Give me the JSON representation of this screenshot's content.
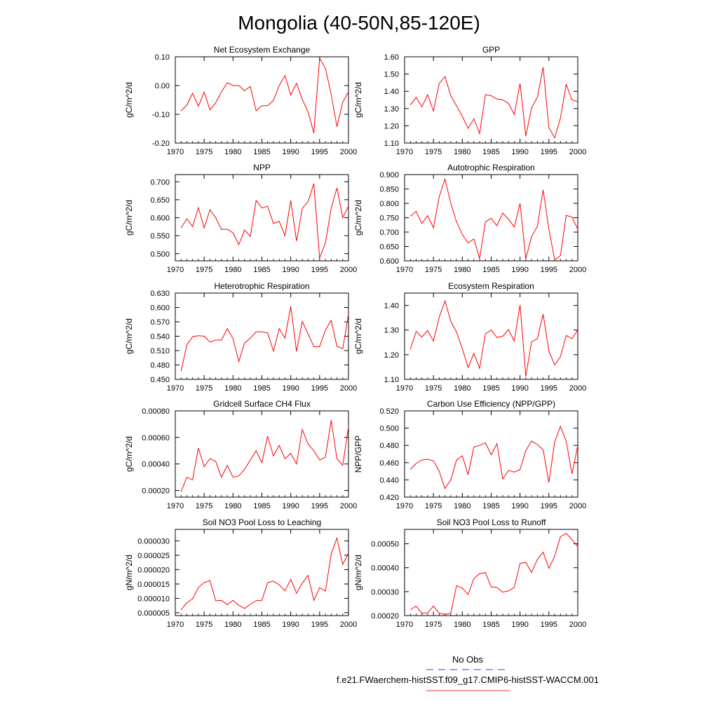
{
  "figure": {
    "title": "Mongolia (40-50N,85-120E)",
    "legend": [
      {
        "label": "No Obs",
        "color": "#3b3bd6",
        "dash": "dashed"
      },
      {
        "label": "f.e21.FWaerchem-histSST.f09_g17.CMIP6-histSST-WACCM.001",
        "color": "#e03030",
        "dash": "solid"
      }
    ]
  },
  "chart_data": [
    {
      "type": "line",
      "title": "Net Ecosystem Exchange",
      "ylabel": "gC/m^2/d",
      "xlabel": "",
      "xlim": [
        1970,
        2000
      ],
      "ylim": [
        -0.2,
        0.1
      ],
      "xticks": [
        "1970",
        "1975",
        "1980",
        "1985",
        "1990",
        "1995",
        "2000"
      ],
      "yticks": [
        "-0.20",
        "-0.10",
        "0.00",
        "0.10"
      ],
      "x": [
        1971,
        1972,
        1973,
        1974,
        1975,
        1976,
        1977,
        1978,
        1979,
        1980,
        1981,
        1982,
        1983,
        1984,
        1985,
        1986,
        1987,
        1988,
        1989,
        1990,
        1991,
        1992,
        1993,
        1994,
        1995,
        1996,
        1997,
        1998,
        1999,
        2000
      ],
      "series": [
        {
          "color": "#ff0000",
          "values": [
            -0.088,
            -0.068,
            -0.027,
            -0.072,
            -0.023,
            -0.085,
            -0.06,
            -0.022,
            0.01,
            0.0,
            0.0,
            -0.018,
            -0.003,
            -0.088,
            -0.07,
            -0.07,
            -0.052,
            0.0,
            0.035,
            -0.033,
            0.008,
            -0.048,
            -0.092,
            -0.165,
            0.095,
            0.06,
            -0.03,
            -0.143,
            -0.058,
            -0.022
          ]
        }
      ]
    },
    {
      "type": "line",
      "title": "GPP",
      "ylabel": "gC/m^2/d",
      "xlabel": "",
      "xlim": [
        1970,
        2000
      ],
      "ylim": [
        1.1,
        1.6
      ],
      "xticks": [
        "1970",
        "1975",
        "1980",
        "1985",
        "1990",
        "1995",
        "2000"
      ],
      "yticks": [
        "1.10",
        "1.20",
        "1.30",
        "1.40",
        "1.50",
        "1.60"
      ],
      "x": [
        1971,
        1972,
        1973,
        1974,
        1975,
        1976,
        1977,
        1978,
        1979,
        1980,
        1981,
        1982,
        1983,
        1984,
        1985,
        1986,
        1987,
        1988,
        1989,
        1990,
        1991,
        1992,
        1993,
        1994,
        1995,
        1996,
        1997,
        1998,
        1999,
        2000
      ],
      "series": [
        {
          "color": "#ff0000",
          "values": [
            1.32,
            1.365,
            1.31,
            1.38,
            1.285,
            1.445,
            1.485,
            1.375,
            1.315,
            1.255,
            1.185,
            1.24,
            1.155,
            1.38,
            1.375,
            1.355,
            1.35,
            1.33,
            1.265,
            1.445,
            1.14,
            1.305,
            1.365,
            1.54,
            1.19,
            1.13,
            1.245,
            1.44,
            1.35,
            1.34
          ]
        }
      ]
    },
    {
      "type": "line",
      "title": "NPP",
      "ylabel": "gC/m^2/d",
      "xlabel": "",
      "xlim": [
        1970,
        2000
      ],
      "ylim": [
        0.48,
        0.72
      ],
      "xticks": [
        "1970",
        "1975",
        "1980",
        "1985",
        "1990",
        "1995",
        "2000"
      ],
      "yticks": [
        "0.500",
        "0.550",
        "0.600",
        "0.650",
        "0.700"
      ],
      "x": [
        1971,
        1972,
        1973,
        1974,
        1975,
        1976,
        1977,
        1978,
        1979,
        1980,
        1981,
        1982,
        1983,
        1984,
        1985,
        1986,
        1987,
        1988,
        1989,
        1990,
        1991,
        1992,
        1993,
        1994,
        1995,
        1996,
        1997,
        1998,
        1999,
        2000
      ],
      "series": [
        {
          "color": "#ff0000",
          "values": [
            0.572,
            0.597,
            0.575,
            0.628,
            0.572,
            0.622,
            0.6,
            0.567,
            0.568,
            0.558,
            0.525,
            0.566,
            0.548,
            0.648,
            0.627,
            0.632,
            0.584,
            0.59,
            0.55,
            0.648,
            0.535,
            0.626,
            0.645,
            0.695,
            0.488,
            0.53,
            0.626,
            0.683,
            0.6,
            0.632
          ]
        }
      ]
    },
    {
      "type": "line",
      "title": "Autotrophic Respiration",
      "ylabel": "gC/m^2/d",
      "xlabel": "",
      "xlim": [
        1970,
        2000
      ],
      "ylim": [
        0.6,
        0.9
      ],
      "xticks": [
        "1970",
        "1975",
        "1980",
        "1985",
        "1990",
        "1995",
        "2000"
      ],
      "yticks": [
        "0.600",
        "0.650",
        "0.700",
        "0.750",
        "0.800",
        "0.850",
        "0.900"
      ],
      "x": [
        1971,
        1972,
        1973,
        1974,
        1975,
        1976,
        1977,
        1978,
        1979,
        1980,
        1981,
        1982,
        1983,
        1984,
        1985,
        1986,
        1987,
        1988,
        1989,
        1990,
        1991,
        1992,
        1993,
        1994,
        1995,
        1996,
        1997,
        1998,
        1999,
        2000
      ],
      "series": [
        {
          "color": "#ff0000",
          "values": [
            0.755,
            0.772,
            0.73,
            0.757,
            0.715,
            0.823,
            0.885,
            0.8,
            0.735,
            0.692,
            0.662,
            0.676,
            0.608,
            0.735,
            0.748,
            0.722,
            0.766,
            0.745,
            0.718,
            0.8,
            0.607,
            0.684,
            0.72,
            0.847,
            0.71,
            0.603,
            0.618,
            0.758,
            0.752,
            0.71
          ]
        }
      ]
    },
    {
      "type": "line",
      "title": "Heterotrophic Respiration",
      "ylabel": "gC/m^2/d",
      "xlabel": "",
      "xlim": [
        1970,
        2000
      ],
      "ylim": [
        0.45,
        0.63
      ],
      "xticks": [
        "1970",
        "1975",
        "1980",
        "1985",
        "1990",
        "1995",
        "2000"
      ],
      "yticks": [
        "0.450",
        "0.480",
        "0.510",
        "0.540",
        "0.570",
        "0.600",
        "0.630"
      ],
      "x": [
        1971,
        1972,
        1973,
        1974,
        1975,
        1976,
        1977,
        1978,
        1979,
        1980,
        1981,
        1982,
        1983,
        1984,
        1985,
        1986,
        1987,
        1988,
        1989,
        1990,
        1991,
        1992,
        1993,
        1994,
        1995,
        1996,
        1997,
        1998,
        1999,
        2000
      ],
      "series": [
        {
          "color": "#ff0000",
          "values": [
            0.467,
            0.522,
            0.539,
            0.541,
            0.54,
            0.528,
            0.532,
            0.532,
            0.556,
            0.535,
            0.487,
            0.526,
            0.536,
            0.549,
            0.549,
            0.547,
            0.509,
            0.556,
            0.536,
            0.602,
            0.508,
            0.571,
            0.545,
            0.518,
            0.518,
            0.553,
            0.573,
            0.519,
            0.514,
            0.586
          ]
        }
      ]
    },
    {
      "type": "line",
      "title": "Ecosystem Respiration",
      "ylabel": "gC/m^2/d",
      "xlabel": "",
      "xlim": [
        1970,
        2000
      ],
      "ylim": [
        1.1,
        1.45
      ],
      "xticks": [
        "1970",
        "1975",
        "1980",
        "1985",
        "1990",
        "1995",
        "2000"
      ],
      "yticks": [
        "1.10",
        "1.20",
        "1.30",
        "1.40"
      ],
      "x": [
        1971,
        1972,
        1973,
        1974,
        1975,
        1976,
        1977,
        1978,
        1979,
        1980,
        1981,
        1982,
        1983,
        1984,
        1985,
        1986,
        1987,
        1988,
        1989,
        1990,
        1991,
        1992,
        1993,
        1994,
        1995,
        1996,
        1997,
        1998,
        1999,
        2000
      ],
      "series": [
        {
          "color": "#ff0000",
          "values": [
            1.222,
            1.295,
            1.272,
            1.298,
            1.255,
            1.352,
            1.418,
            1.335,
            1.292,
            1.225,
            1.148,
            1.205,
            1.145,
            1.285,
            1.3,
            1.27,
            1.275,
            1.302,
            1.255,
            1.402,
            1.112,
            1.252,
            1.265,
            1.365,
            1.215,
            1.158,
            1.192,
            1.278,
            1.265,
            1.3
          ]
        }
      ]
    },
    {
      "type": "line",
      "title": "Gridcell Surface CH4 Flux",
      "ylabel": "gC/m^2/d",
      "xlabel": "",
      "xlim": [
        1970,
        2000
      ],
      "ylim": [
        0.00015,
        0.0008
      ],
      "xticks": [
        "1970",
        "1975",
        "1980",
        "1985",
        "1990",
        "1995",
        "2000"
      ],
      "yticks": [
        "0.00020",
        "0.00040",
        "0.00060",
        "0.00080"
      ],
      "x": [
        1971,
        1972,
        1973,
        1974,
        1975,
        1976,
        1977,
        1978,
        1979,
        1980,
        1981,
        1982,
        1983,
        1984,
        1985,
        1986,
        1987,
        1988,
        1989,
        1990,
        1991,
        1992,
        1993,
        1994,
        1995,
        1996,
        1997,
        1998,
        1999,
        2000
      ],
      "series": [
        {
          "color": "#ff0000",
          "values": [
            0.00019,
            0.0003,
            0.00028,
            0.00052,
            0.00038,
            0.00044,
            0.00042,
            0.0003,
            0.00039,
            0.0003,
            0.00031,
            0.00036,
            0.00043,
            0.0005,
            0.00041,
            0.00061,
            0.00046,
            0.00054,
            0.00044,
            0.00048,
            0.0004,
            0.00066,
            0.00055,
            0.0005,
            0.00043,
            0.00045,
            0.00073,
            0.00044,
            0.00039,
            0.00068
          ]
        }
      ]
    },
    {
      "type": "line",
      "title": "Carbon Use Efficiency (NPP/GPP)",
      "ylabel": "NPP/GPP",
      "xlabel": "",
      "xlim": [
        1970,
        2000
      ],
      "ylim": [
        0.42,
        0.52
      ],
      "xticks": [
        "1970",
        "1975",
        "1980",
        "1985",
        "1990",
        "1995",
        "2000"
      ],
      "yticks": [
        "0.420",
        "0.440",
        "0.460",
        "0.480",
        "0.500",
        "0.520"
      ],
      "x": [
        1971,
        1972,
        1973,
        1974,
        1975,
        1976,
        1977,
        1978,
        1979,
        1980,
        1981,
        1982,
        1983,
        1984,
        1985,
        1986,
        1987,
        1988,
        1989,
        1990,
        1991,
        1992,
        1993,
        1994,
        1995,
        1996,
        1997,
        1998,
        1999,
        2000
      ],
      "series": [
        {
          "color": "#ff0000",
          "values": [
            0.452,
            0.459,
            0.463,
            0.464,
            0.462,
            0.45,
            0.43,
            0.44,
            0.463,
            0.468,
            0.446,
            0.478,
            0.48,
            0.483,
            0.469,
            0.482,
            0.441,
            0.451,
            0.449,
            0.452,
            0.474,
            0.485,
            0.481,
            0.475,
            0.437,
            0.484,
            0.502,
            0.485,
            0.447,
            0.48
          ]
        }
      ]
    },
    {
      "type": "line",
      "title": "Soil NO3 Pool Loss to Leaching",
      "ylabel": "gN/m^2/d",
      "xlabel": "",
      "xlim": [
        1970,
        2000
      ],
      "ylim": [
        4e-06,
        3.4e-05
      ],
      "xticks": [
        "1970",
        "1975",
        "1980",
        "1985",
        "1990",
        "1995",
        "2000"
      ],
      "yticks": [
        "0.000005",
        "0.000010",
        "0.000015",
        "0.000020",
        "0.000025",
        "0.000030"
      ],
      "x": [
        1971,
        1972,
        1973,
        1974,
        1975,
        1976,
        1977,
        1978,
        1979,
        1980,
        1981,
        1982,
        1983,
        1984,
        1985,
        1986,
        1987,
        1988,
        1989,
        1990,
        1991,
        1992,
        1993,
        1994,
        1995,
        1996,
        1997,
        1998,
        1999,
        2000
      ],
      "series": [
        {
          "color": "#ff0000",
          "values": [
            6e-06,
            8.5e-06,
            9.8e-06,
            1.38e-05,
            1.55e-05,
            1.62e-05,
            9.2e-06,
            9.3e-06,
            7.8e-06,
            9.3e-06,
            7.6e-06,
            6.5e-06,
            7.9e-06,
            9.2e-06,
            9.3e-06,
            1.55e-05,
            1.6e-05,
            1.47e-05,
            1.26e-05,
            1.66e-05,
            1.18e-05,
            1.53e-05,
            1.8e-05,
            9.3e-06,
            1.37e-05,
            1.25e-05,
            2.54e-05,
            3.1e-05,
            2.18e-05,
            2.58e-05
          ]
        }
      ]
    },
    {
      "type": "line",
      "title": "Soil NO3 Pool Loss to Runoff",
      "ylabel": "gN/m^2/d",
      "xlabel": "",
      "xlim": [
        1970,
        2000
      ],
      "ylim": [
        0.0002,
        0.00056
      ],
      "xticks": [
        "1970",
        "1975",
        "1980",
        "1985",
        "1990",
        "1995",
        "2000"
      ],
      "yticks": [
        "0.00020",
        "0.00030",
        "0.00040",
        "0.00050"
      ],
      "x": [
        1971,
        1972,
        1973,
        1974,
        1975,
        1976,
        1977,
        1978,
        1979,
        1980,
        1981,
        1982,
        1983,
        1984,
        1985,
        1986,
        1987,
        1988,
        1989,
        1990,
        1991,
        1992,
        1993,
        1994,
        1995,
        1996,
        1997,
        1998,
        1999,
        2000
      ],
      "series": [
        {
          "color": "#ff0000",
          "values": [
            0.000225,
            0.00024,
            0.00021,
            0.000212,
            0.00024,
            0.00021,
            0.000205,
            0.00021,
            0.000325,
            0.000315,
            0.000288,
            0.000355,
            0.000375,
            0.00038,
            0.00032,
            0.000318,
            0.000298,
            0.000303,
            0.000318,
            0.000418,
            0.000422,
            0.00038,
            0.000435,
            0.000465,
            0.000398,
            0.000448,
            0.00053,
            0.000543,
            0.000518,
            0.000488
          ]
        }
      ]
    }
  ]
}
